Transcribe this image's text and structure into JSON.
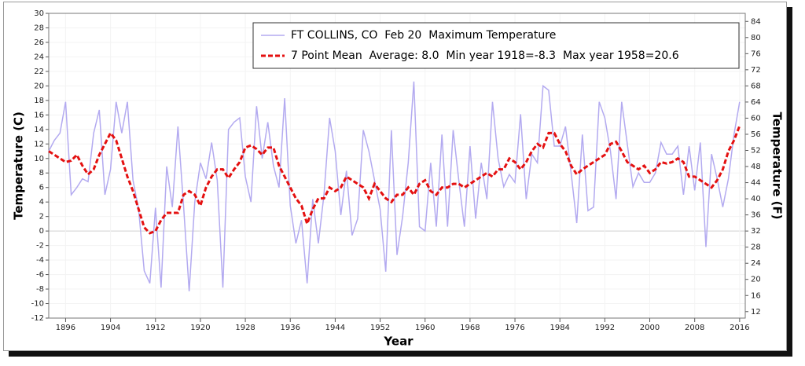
{
  "chart_data": {
    "type": "line",
    "xlabel": "Year",
    "ylabel": "Temperature (C)",
    "y2label": "Temperature (F)",
    "x": [
      1893,
      1894,
      1895,
      1896,
      1897,
      1898,
      1899,
      1900,
      1901,
      1902,
      1903,
      1904,
      1905,
      1906,
      1907,
      1908,
      1909,
      1910,
      1911,
      1912,
      1913,
      1914,
      1915,
      1916,
      1917,
      1918,
      1919,
      1920,
      1921,
      1922,
      1923,
      1924,
      1925,
      1926,
      1927,
      1928,
      1929,
      1930,
      1931,
      1932,
      1933,
      1934,
      1935,
      1936,
      1937,
      1938,
      1939,
      1940,
      1941,
      1942,
      1943,
      1944,
      1945,
      1946,
      1947,
      1948,
      1949,
      1950,
      1951,
      1952,
      1953,
      1954,
      1955,
      1956,
      1957,
      1958,
      1959,
      1960,
      1961,
      1962,
      1963,
      1964,
      1965,
      1966,
      1967,
      1968,
      1969,
      1970,
      1971,
      1972,
      1973,
      1974,
      1975,
      1976,
      1977,
      1978,
      1979,
      1980,
      1981,
      1982,
      1983,
      1984,
      1985,
      1986,
      1987,
      1988,
      1989,
      1990,
      1991,
      1992,
      1993,
      1994,
      1995,
      1996,
      1997,
      1998,
      1999,
      2000,
      2001,
      2002,
      2003,
      2004,
      2005,
      2006,
      2007,
      2008,
      2009,
      2010,
      2011,
      2012,
      2013,
      2014,
      2015,
      2016
    ],
    "series": [
      {
        "name": "FT COLLINS, CO  Feb 20  Maximum Temperature",
        "color": "#b3aaf0",
        "dashed": false,
        "values": [
          11,
          12.5,
          13.5,
          17.8,
          5,
          6,
          7.2,
          6.8,
          13.5,
          16.7,
          5,
          8.5,
          17.8,
          13.5,
          17.8,
          7,
          3,
          -5.5,
          -7.2,
          3.2,
          -7.8,
          8.9,
          3.3,
          14.4,
          3.5,
          -8.3,
          4,
          9.4,
          7.2,
          12.2,
          7,
          -7.8,
          14,
          15,
          15.6,
          7.5,
          4,
          17.2,
          10,
          15,
          9,
          6,
          18.3,
          3.5,
          -1.7,
          1.5,
          -7.2,
          4.4,
          -1.7,
          5,
          15.6,
          11,
          2.2,
          8.3,
          -0.6,
          1.7,
          13.9,
          11,
          7,
          3,
          -5.6,
          13.9,
          -3.3,
          2,
          9.4,
          20.6,
          0.6,
          0,
          9.4,
          0.6,
          13.3,
          0.6,
          13.9,
          7,
          0.6,
          11.7,
          1.7,
          9.4,
          4.4,
          17.8,
          10,
          6.1,
          7.8,
          6.7,
          16.1,
          4.4,
          10.6,
          9.4,
          20,
          19.4,
          11.7,
          11.7,
          14.4,
          8,
          1.1,
          13.3,
          2.8,
          3.3,
          17.8,
          15.6,
          11,
          4.4,
          17.8,
          12,
          6.1,
          8,
          6.7,
          6.7,
          8,
          12.2,
          10.6,
          10.6,
          11.7,
          5,
          11.7,
          5.6,
          12.2,
          -2.2,
          10.6,
          7.2,
          3.3,
          7.2,
          13.3,
          17.8
        ]
      },
      {
        "name": "7 Point Mean  Average: 8.0  Min year 1918=-8.3  Max year 1958=20.6",
        "color": "#e41010",
        "dashed": true,
        "values": [
          11,
          10.5,
          10,
          9.5,
          9.7,
          10.5,
          9,
          7.8,
          8.5,
          10.5,
          12,
          13.5,
          12.5,
          10,
          7.5,
          5.5,
          3,
          0.5,
          -0.3,
          0,
          1.5,
          2.5,
          2.5,
          2.5,
          5,
          5.5,
          5,
          3.5,
          6,
          7.5,
          8.5,
          8.5,
          7.3,
          8.5,
          9.5,
          11.5,
          11.8,
          11.3,
          10.5,
          11.5,
          11.5,
          9,
          7.5,
          6,
          4.5,
          3.5,
          1,
          3,
          4.5,
          4.5,
          6,
          5.5,
          6,
          7.5,
          7,
          6.5,
          6,
          4.5,
          6.5,
          5.5,
          4.5,
          4,
          5,
          5,
          6,
          5,
          6.5,
          7,
          5.5,
          5,
          6,
          6,
          6.5,
          6.5,
          6,
          6.5,
          7,
          7.5,
          8,
          7.5,
          8.5,
          8.5,
          10,
          9.5,
          8.5,
          9.5,
          11,
          12,
          11.5,
          13.5,
          13.5,
          12,
          11,
          9,
          7.8,
          8.5,
          9,
          9.5,
          10,
          10.5,
          12,
          12.3,
          11,
          9.5,
          9,
          8.5,
          9,
          8,
          8.5,
          9.5,
          9.3,
          9.5,
          10,
          9.5,
          7.5,
          7.5,
          7,
          6.5,
          6,
          7,
          8.5,
          11,
          12.5,
          14.5
        ]
      }
    ],
    "xlim": [
      1893,
      2017
    ],
    "xticks": [
      1896,
      1904,
      1912,
      1920,
      1928,
      1936,
      1944,
      1952,
      1960,
      1968,
      1976,
      1984,
      1992,
      2000,
      2008,
      2016
    ],
    "ylim": [
      -12,
      30
    ],
    "yticks": [
      -12,
      -10,
      -8,
      -6,
      -4,
      -2,
      0,
      2,
      4,
      6,
      8,
      10,
      12,
      14,
      16,
      18,
      20,
      22,
      24,
      26,
      28,
      30
    ],
    "y2lim": [
      10.4,
      86
    ],
    "y2ticks": [
      12,
      16,
      20,
      24,
      28,
      32,
      36,
      40,
      44,
      48,
      52,
      56,
      60,
      64,
      68,
      72,
      76,
      80,
      84
    ],
    "grid": true
  }
}
